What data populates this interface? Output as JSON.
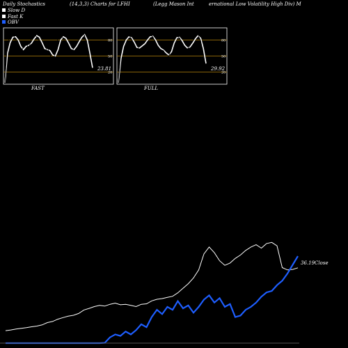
{
  "header": {
    "left": "Daily Stochastics",
    "center_left": "(14,3,3) Charts for LFHI",
    "center": "(Legg Mason  Int",
    "right": "ernational Low  Volatility High Div) M"
  },
  "legend": [
    {
      "label": "Slow  D",
      "color": "#ffffff"
    },
    {
      "label": "Fast K",
      "color": "#ffffff"
    },
    {
      "label": "OBV",
      "color": "#1e5eff"
    }
  ],
  "chart_data": [
    {
      "type": "line",
      "name": "FAST",
      "title": "FAST",
      "ylim": [
        0,
        100
      ],
      "y_ticks": [
        "80",
        "50",
        "20"
      ],
      "grid_levels": [
        80,
        50,
        20
      ],
      "value_label": "23.81",
      "series": [
        {
          "name": "Fast K",
          "values": [
            0,
            75,
            85,
            90,
            82,
            70,
            55,
            68,
            74,
            63,
            85,
            90,
            86,
            78,
            63,
            58,
            66,
            52,
            40,
            56,
            86,
            91,
            82,
            75,
            64,
            52,
            67,
            73,
            85,
            91,
            89,
            60,
            22,
            24
          ]
        },
        {
          "name": "Slow D",
          "values": [
            0,
            55,
            75,
            85,
            86,
            80,
            68,
            62,
            68,
            70,
            74,
            82,
            88,
            85,
            75,
            64,
            62,
            60,
            52,
            50,
            62,
            80,
            86,
            83,
            74,
            64,
            62,
            68,
            77,
            85,
            90,
            80,
            55,
            28
          ]
        }
      ]
    },
    {
      "type": "line",
      "name": "FULL",
      "title": "FULL",
      "ylim": [
        0,
        100
      ],
      "y_ticks": [
        "80",
        "50",
        "20"
      ],
      "grid_levels": [
        80,
        50,
        20
      ],
      "value_label": "29.92",
      "series": [
        {
          "name": "Fast K",
          "values": [
            0,
            60,
            78,
            86,
            88,
            82,
            70,
            62,
            68,
            72,
            76,
            84,
            89,
            86,
            76,
            65,
            62,
            60,
            52,
            50,
            64,
            82,
            87,
            84,
            75,
            65,
            63,
            70,
            78,
            86,
            90,
            78,
            50,
            30
          ]
        },
        {
          "name": "Slow D",
          "values": [
            0,
            45,
            68,
            80,
            86,
            84,
            76,
            66,
            65,
            69,
            73,
            80,
            86,
            87,
            80,
            70,
            64,
            61,
            56,
            52,
            58,
            74,
            84,
            85,
            79,
            70,
            65,
            67,
            74,
            82,
            88,
            83,
            64,
            36
          ]
        }
      ]
    },
    {
      "type": "line",
      "name": "price",
      "value_label": "36.19",
      "value_suffix": "Close",
      "series": [
        {
          "name": "Close",
          "values": [
            33.45,
            33.48,
            33.52,
            33.55,
            33.58,
            33.62,
            33.65,
            33.7,
            33.8,
            33.85,
            33.95,
            34.02,
            34.08,
            34.12,
            34.2,
            34.35,
            34.42,
            34.5,
            34.55,
            34.52,
            34.6,
            34.65,
            34.58,
            34.6,
            34.55,
            34.5,
            34.6,
            34.62,
            34.75,
            34.82,
            34.85,
            34.9,
            34.95,
            35.1,
            35.3,
            35.5,
            35.75,
            36.1,
            36.8,
            37.1,
            36.85,
            36.5,
            36.3,
            36.4,
            36.6,
            36.75,
            36.95,
            37.1,
            37.2,
            37.05,
            37.25,
            37.3,
            37.15,
            36.2,
            36.1,
            36.12,
            36.19
          ]
        },
        {
          "name": "OBV",
          "values": [
            0,
            0,
            0,
            0,
            0,
            0,
            0,
            0,
            0,
            0,
            0,
            0,
            0,
            0,
            0,
            0,
            0,
            0,
            0,
            0.02,
            0.4,
            0.6,
            0.5,
            0.8,
            0.6,
            0.9,
            1.3,
            1.1,
            1.8,
            2.3,
            2.0,
            2.5,
            2.3,
            2.9,
            2.4,
            2.6,
            2.1,
            2.5,
            3.0,
            3.3,
            2.8,
            3.1,
            2.5,
            2.7,
            1.8,
            1.9,
            2.3,
            2.5,
            2.8,
            3.2,
            3.5,
            3.6,
            4.0,
            4.3,
            4.8,
            5.4,
            6.0
          ]
        }
      ]
    }
  ]
}
